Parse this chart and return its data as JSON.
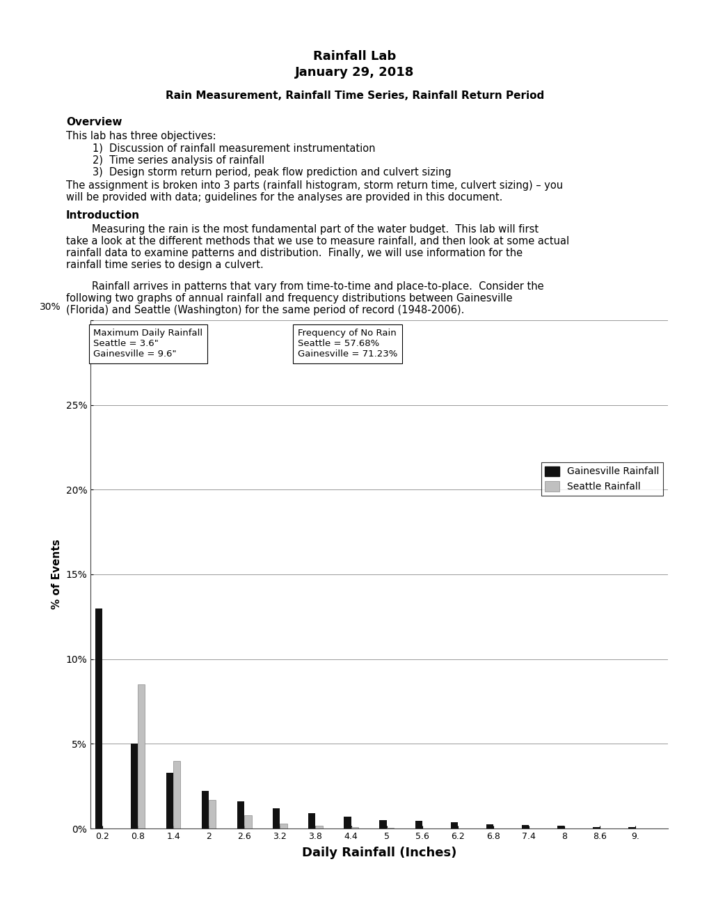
{
  "title_line1": "Rainfall Lab",
  "title_line2": "January 29, 2018",
  "subtitle": "Rain Measurement, Rainfall Time Series, Rainfall Return Period",
  "overview_header": "Overview",
  "overview_text": "This lab has three objectives:",
  "overview_items": [
    "1)  Discussion of rainfall measurement instrumentation",
    "2)  Time series analysis of rainfall",
    "3)  Design storm return period, peak flow prediction and culvert sizing"
  ],
  "overview_footer1": "The assignment is broken into 3 parts (rainfall histogram, storm return time, culvert sizing) – you",
  "overview_footer2": "will be provided with data; guidelines for the analyses are provided in this document.",
  "intro_header": "Introduction",
  "intro_para1_lines": [
    "        Measuring the rain is the most fundamental part of the water budget.  This lab will first",
    "take a look at the different methods that we use to measure rainfall, and then look at some actual",
    "rainfall data to examine patterns and distribution.  Finally, we will use information for the",
    "rainfall time series to design a culvert."
  ],
  "intro_para2_lines": [
    "        Rainfall arrives in patterns that vary from time-to-time and place-to-place.  Consider the",
    "following two graphs of annual rainfall and frequency distributions between Gainesville",
    "(Florida) and Seattle (Washington) for the same period of record (1948-2006)."
  ],
  "chart_ylabel": "% of Events",
  "chart_xlabel": "Daily Rainfall (Inches)",
  "chart_ytick_labels": [
    "0%",
    "5%",
    "10%",
    "15%",
    "20%",
    "25%",
    "30%"
  ],
  "chart_ytick_vals": [
    0,
    5,
    10,
    15,
    20,
    25,
    30
  ],
  "chart_xtick_labels": [
    "0.2",
    "0.8",
    "1.4",
    "2",
    "2.6",
    "3.2",
    "3.8",
    "4.4",
    "5",
    "5.6",
    "6.2",
    "6.8",
    "7.4",
    "8",
    "8.6",
    "9."
  ],
  "chart_xtick_positions": [
    0.2,
    0.8,
    1.4,
    2.0,
    2.6,
    3.2,
    3.8,
    4.4,
    5.0,
    5.6,
    6.2,
    6.8,
    7.4,
    8.0,
    8.6,
    9.2
  ],
  "gainesville_data": [
    13.0,
    5.0,
    3.3,
    2.2,
    1.6,
    1.2,
    0.9,
    0.7,
    0.5,
    0.45,
    0.35,
    0.25,
    0.2,
    0.15,
    0.1,
    0.08
  ],
  "seattle_data": [
    0.0,
    8.5,
    4.0,
    1.7,
    0.8,
    0.3,
    0.15,
    0.08,
    0.03,
    0.0,
    0.0,
    0.0,
    0.0,
    0.0,
    0.0,
    0.0
  ],
  "gainesville_color": "#111111",
  "seattle_color": "#c0c0c0",
  "box1_line1": "Maximum Daily Rainfall",
  "box1_line2": "Seattle = 3.6\"",
  "box1_line3": "Gainesville = 9.6\"",
  "box2_line1": "Frequency of No Rain",
  "box2_line2": "Seattle = 57.68%",
  "box2_line3": "Gainesville = 71.23%",
  "legend_gainesville": "Gainesville Rainfall",
  "legend_seattle": "Seattle Rainfall",
  "background_color": "#ffffff"
}
